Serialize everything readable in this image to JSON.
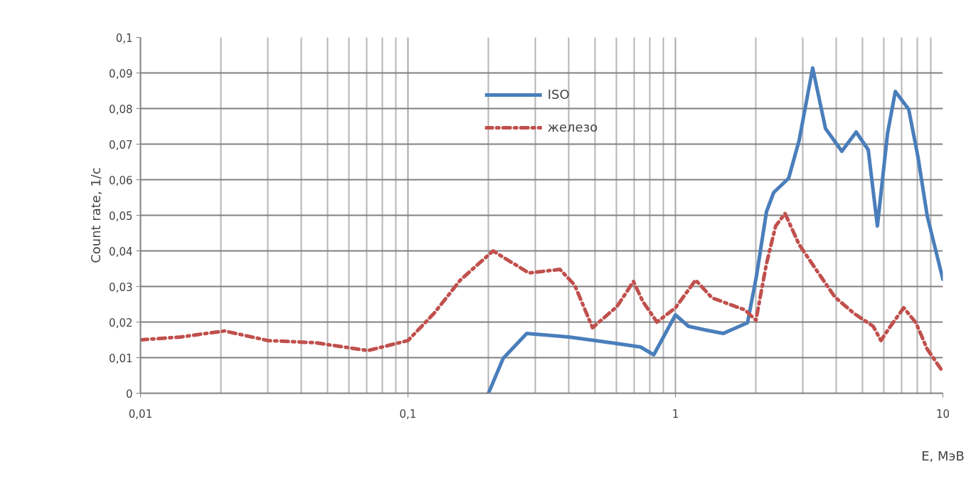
{
  "chart_data": {
    "type": "line",
    "xlabel": "E, МэВ",
    "ylabel": "Count rate, 1/с",
    "log": "x",
    "xlim": [
      0.01,
      10
    ],
    "xticks": [
      {
        "value": 0.01,
        "label": "0,01"
      },
      {
        "value": 0.1,
        "label": "0,1"
      },
      1,
      10
    ],
    "ylim": [
      0,
      0.1
    ],
    "yticks": [
      0,
      {
        "value": 0.01,
        "label": "0,01"
      },
      {
        "value": 0.02,
        "label": "0,02"
      },
      {
        "value": 0.03,
        "label": "0,03"
      },
      {
        "value": 0.04,
        "label": "0,04"
      },
      {
        "value": 0.05,
        "label": "0,05"
      },
      {
        "value": 0.06,
        "label": "0,06"
      },
      {
        "value": 0.07,
        "label": "0,07"
      },
      {
        "value": 0.08,
        "label": "0,08"
      },
      {
        "value": 0.09,
        "label": "0,09"
      },
      {
        "value": 0.1,
        "label": "0,1"
      }
    ],
    "grid": true,
    "legend": "top",
    "series": [
      {
        "name": "ISO",
        "color": "#4a7ebb",
        "line_style": "solid",
        "x": [
          0.2,
          0.227,
          0.278,
          0.4,
          0.6,
          0.74,
          0.83,
          1.0,
          1.12,
          1.29,
          1.51,
          1.86,
          2.01,
          2.19,
          2.33,
          2.65,
          2.9,
          3.26,
          3.64,
          4.19,
          4.74,
          5.26,
          5.69,
          6.21,
          6.64,
          7.45,
          8.07,
          8.74,
          10
        ],
        "values": [
          0,
          0.0098,
          0.0168,
          0.0158,
          0.014,
          0.013,
          0.0108,
          0.022,
          0.0188,
          0.0178,
          0.0168,
          0.0198,
          0.033,
          0.051,
          0.0564,
          0.0604,
          0.071,
          0.0914,
          0.0744,
          0.068,
          0.0734,
          0.0684,
          0.047,
          0.073,
          0.0848,
          0.0798,
          0.0664,
          0.0498,
          0.032
        ]
      },
      {
        "name": "железо",
        "color": "#c0504d",
        "line_style": "dashed",
        "x": [
          0.01,
          0.0141,
          0.0206,
          0.03,
          0.045,
          0.065,
          0.071,
          0.1,
          0.125,
          0.157,
          0.208,
          0.283,
          0.37,
          0.42,
          0.49,
          0.605,
          0.697,
          0.755,
          0.853,
          1.0,
          1.19,
          1.37,
          1.82,
          2.0,
          2.19,
          2.37,
          2.57,
          2.9,
          3.57,
          3.95,
          4.66,
          5.49,
          5.87,
          6.31,
          7.14,
          7.93,
          8.74,
          10
        ],
        "values": [
          0.015,
          0.0158,
          0.0175,
          0.0148,
          0.0142,
          0.0124,
          0.012,
          0.0148,
          0.0224,
          0.0318,
          0.04,
          0.0338,
          0.0348,
          0.0304,
          0.0184,
          0.0244,
          0.0314,
          0.0258,
          0.02,
          0.024,
          0.0318,
          0.0268,
          0.0234,
          0.0205,
          0.0364,
          0.047,
          0.0505,
          0.0418,
          0.0318,
          0.027,
          0.0224,
          0.0188,
          0.0148,
          0.0184,
          0.024,
          0.0198,
          0.0124,
          0.006
        ]
      }
    ]
  }
}
